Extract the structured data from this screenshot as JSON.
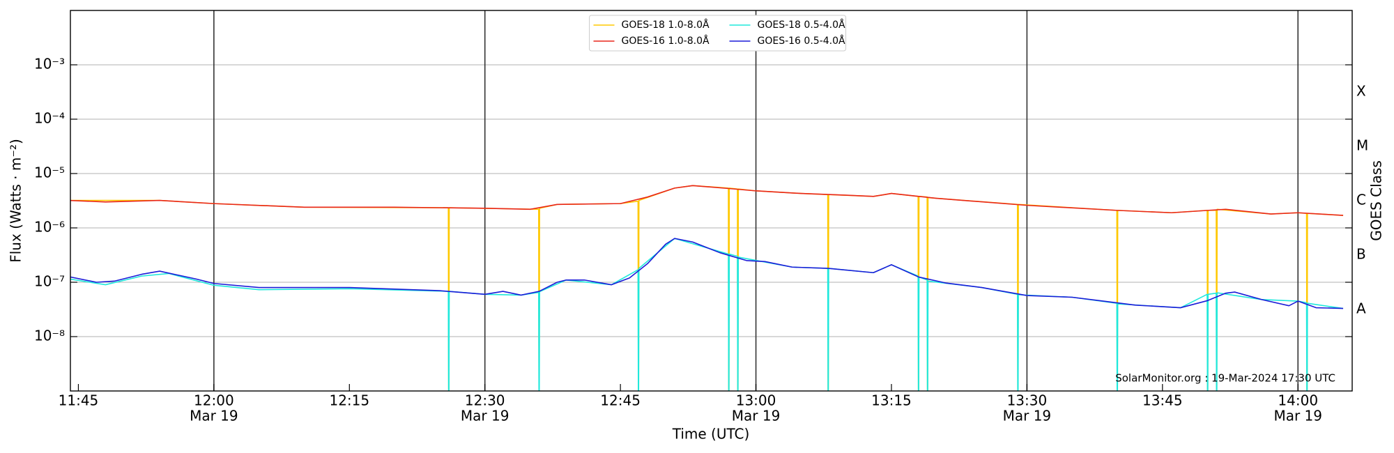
{
  "chart_data": {
    "type": "line",
    "yscale": "log",
    "ylabel": "Flux (Watts · m⁻²)",
    "xlabel": "Time (UTC)",
    "y2label": "GOES Class",
    "annotation": "SolarMonitor.org : 19-Mar-2024 17:30 UTC",
    "legend": "upper center",
    "grid": true,
    "xlim": [
      "11:44:07",
      "14:06:00"
    ],
    "ylim": [
      1e-09,
      0.01
    ],
    "yticks": [
      {
        "value": 1e-08,
        "label": "10⁻⁸"
      },
      {
        "value": 1e-07,
        "label": "10⁻⁷"
      },
      {
        "value": 1e-06,
        "label": "10⁻⁶"
      },
      {
        "value": 1e-05,
        "label": "10⁻⁵"
      },
      {
        "value": 0.0001,
        "label": "10⁻⁴"
      },
      {
        "value": 0.001,
        "label": "10⁻³"
      }
    ],
    "xticks": [
      {
        "value": "11:45",
        "label": "11:45"
      },
      {
        "value": "12:00",
        "label": "12:00",
        "date": "Mar 19"
      },
      {
        "value": "12:15",
        "label": "12:15"
      },
      {
        "value": "12:30",
        "label": "12:30",
        "date": "Mar 19"
      },
      {
        "value": "12:45",
        "label": "12:45"
      },
      {
        "value": "13:00",
        "label": "13:00",
        "date": "Mar 19"
      },
      {
        "value": "13:15",
        "label": "13:15"
      },
      {
        "value": "13:30",
        "label": "13:30",
        "date": "Mar 19"
      },
      {
        "value": "13:45",
        "label": "13:45"
      },
      {
        "value": "14:00",
        "label": "14:00",
        "date": "Mar 19"
      }
    ],
    "classes": [
      {
        "label": "A",
        "range": [
          1e-08,
          1e-07
        ]
      },
      {
        "label": "B",
        "range": [
          1e-07,
          1e-06
        ]
      },
      {
        "label": "C",
        "range": [
          1e-06,
          1e-05
        ]
      },
      {
        "label": "M",
        "range": [
          1e-05,
          0.0001
        ]
      },
      {
        "label": "X",
        "range": [
          0.0001,
          0.001
        ]
      }
    ],
    "series": [
      {
        "name": "GOES-18 1.0-8.0Å",
        "color": "#ffc800",
        "x": [
          "11:44",
          "11:54",
          "12:00",
          "12:10",
          "12:25:57",
          "12:26:00",
          "12:26:03",
          "12:35:57",
          "12:36:00",
          "12:36:03",
          "12:38",
          "12:45",
          "12:46:57",
          "12:47:00",
          "12:47:03",
          "12:51",
          "12:53",
          "12:56:57",
          "12:57:00",
          "12:57:03",
          "12:57:57",
          "12:58:00",
          "12:58:03",
          "13:00",
          "13:05",
          "13:07:57",
          "13:08:00",
          "13:08:03",
          "13:13",
          "13:15",
          "13:17:57",
          "13:18:00",
          "13:18:03",
          "13:18:57",
          "13:19:00",
          "13:19:03",
          "13:28:57",
          "13:29:00",
          "13:29:03",
          "13:39:57",
          "13:40:00",
          "13:40:03",
          "13:46",
          "13:49:57",
          "13:50:00",
          "13:50:03",
          "13:50:57",
          "13:51:00",
          "13:51:03",
          "13:57",
          "14:00",
          "14:00:57",
          "14:01:00",
          "14:01:03",
          "14:05"
        ],
        "values": [
          3.2e-06,
          3.2e-06,
          2.8e-06,
          2.4e-06,
          2.35e-06,
          1e-10,
          2.35e-06,
          2.2e-06,
          1e-10,
          2.3e-06,
          2.7e-06,
          2.8e-06,
          3.1e-06,
          1e-10,
          3.2e-06,
          5.4e-06,
          6e-06,
          5.4e-06,
          1e-10,
          5.4e-06,
          5.2e-06,
          1e-10,
          5.2e-06,
          4.8e-06,
          4.3e-06,
          4.1e-06,
          1e-10,
          4.1e-06,
          3.8e-06,
          4.3e-06,
          3.8e-06,
          1e-10,
          3.8e-06,
          3.7e-06,
          1e-10,
          3.6e-06,
          2.7e-06,
          1e-10,
          2.7e-06,
          2.1e-06,
          1e-10,
          2.1e-06,
          1.9e-06,
          2.1e-06,
          1e-10,
          2.1e-06,
          2.1e-06,
          1e-10,
          2.2e-06,
          1.8e-06,
          1.9e-06,
          1.85e-06,
          1e-10,
          1.85e-06,
          1.7e-06
        ]
      },
      {
        "name": "GOES-16 1.0-8.0Å",
        "color": "#e8261b",
        "x": [
          "11:44",
          "11:48",
          "11:54",
          "12:00",
          "12:10",
          "12:20",
          "12:30",
          "12:35",
          "12:38",
          "12:45",
          "12:48",
          "12:51",
          "12:53",
          "12:57",
          "13:00",
          "13:05",
          "13:10",
          "13:13",
          "13:15",
          "13:20",
          "13:30",
          "13:40",
          "13:46",
          "13:50",
          "13:52",
          "13:57",
          "14:00",
          "14:05"
        ],
        "values": [
          3.2e-06,
          3e-06,
          3.2e-06,
          2.8e-06,
          2.4e-06,
          2.4e-06,
          2.3e-06,
          2.2e-06,
          2.7e-06,
          2.8e-06,
          3.7e-06,
          5.4e-06,
          6e-06,
          5.3e-06,
          4.8e-06,
          4.3e-06,
          4e-06,
          3.8e-06,
          4.3e-06,
          3.5e-06,
          2.6e-06,
          2.1e-06,
          1.9e-06,
          2.1e-06,
          2.2e-06,
          1.8e-06,
          1.9e-06,
          1.7e-06
        ]
      },
      {
        "name": "GOES-18 0.5-4.0Å",
        "color": "#1fe8dc",
        "x": [
          "11:44",
          "11:48",
          "11:52",
          "11:55",
          "12:00",
          "12:05",
          "12:15",
          "12:25:57",
          "12:26:00",
          "12:26:03",
          "12:30",
          "12:34",
          "12:35:57",
          "12:36:00",
          "12:36:03",
          "12:39",
          "12:44",
          "12:46:57",
          "12:47:00",
          "12:47:03",
          "12:51",
          "12:56:57",
          "12:57:00",
          "12:57:03",
          "12:57:57",
          "12:58:00",
          "12:58:03",
          "13:04",
          "13:07:57",
          "13:08:00",
          "13:08:03",
          "13:13",
          "13:15",
          "13:17:57",
          "13:18:00",
          "13:18:03",
          "13:18:57",
          "13:19:00",
          "13:19:03",
          "13:25",
          "13:28:57",
          "13:29:00",
          "13:29:03",
          "13:35",
          "13:39:57",
          "13:40:00",
          "13:40:03",
          "13:47",
          "13:49:57",
          "13:50:00",
          "13:50:03",
          "13:50:57",
          "13:51:00",
          "13:51:03",
          "13:56",
          "14:00",
          "14:00:57",
          "14:01:00",
          "14:01:03",
          "14:05"
        ],
        "values": [
          1.15e-07,
          9e-08,
          1.3e-07,
          1.45e-07,
          8.8e-08,
          7.3e-08,
          7.6e-08,
          6.8e-08,
          1e-10,
          6.8e-08,
          6e-08,
          5.8e-08,
          6.5e-08,
          1e-10,
          6.7e-08,
          1.1e-07,
          9e-08,
          1.7e-07,
          1e-10,
          1.8e-07,
          6.4e-07,
          3.3e-07,
          1e-10,
          3.3e-07,
          3e-07,
          1e-10,
          2.9e-07,
          1.9e-07,
          1.8e-07,
          1e-10,
          1.8e-07,
          1.5e-07,
          2.1e-07,
          1.3e-07,
          1e-10,
          1.25e-07,
          1.1e-07,
          1e-10,
          1.05e-07,
          8e-08,
          6e-08,
          1e-10,
          5.9e-08,
          5.3e-08,
          4.1e-08,
          1e-10,
          4e-08,
          3.4e-08,
          6e-08,
          1e-10,
          6e-08,
          6.3e-08,
          1e-10,
          6.4e-08,
          4.8e-08,
          4.5e-08,
          4.2e-08,
          1e-10,
          4.1e-08,
          3.3e-08
        ]
      },
      {
        "name": "GOES-16 0.5-4.0Å",
        "color": "#1b1bd8",
        "x": [
          "11:44",
          "11:47",
          "11:49",
          "11:52",
          "11:54",
          "11:58",
          "12:00",
          "12:05",
          "12:15",
          "12:25",
          "12:30",
          "12:32",
          "12:34",
          "12:36",
          "12:38",
          "12:39",
          "12:41",
          "12:44",
          "12:46",
          "12:48",
          "12:50",
          "12:51",
          "12:53",
          "12:56",
          "12:59",
          "13:01",
          "13:04",
          "13:08",
          "13:13",
          "13:15",
          "13:18",
          "13:21",
          "13:25",
          "13:30",
          "13:35",
          "13:38",
          "13:42",
          "13:47",
          "13:50",
          "13:52",
          "13:53",
          "13:56",
          "13:59",
          "14:00",
          "14:02",
          "14:05"
        ],
        "values": [
          1.26e-07,
          1e-07,
          1.05e-07,
          1.4e-07,
          1.6e-07,
          1.15e-07,
          9.5e-08,
          8e-08,
          8e-08,
          7e-08,
          6e-08,
          6.8e-08,
          5.8e-08,
          6.8e-08,
          1e-07,
          1.1e-07,
          1.1e-07,
          9e-08,
          1.2e-07,
          2.2e-07,
          5e-07,
          6.4e-07,
          5.5e-07,
          3.5e-07,
          2.5e-07,
          2.4e-07,
          1.9e-07,
          1.8e-07,
          1.5e-07,
          2.1e-07,
          1.25e-07,
          9.7e-08,
          8e-08,
          5.7e-08,
          5.3e-08,
          4.6e-08,
          3.8e-08,
          3.4e-08,
          4.6e-08,
          6.3e-08,
          6.6e-08,
          4.8e-08,
          3.7e-08,
          4.5e-08,
          3.4e-08,
          3.3e-08
        ]
      }
    ]
  }
}
